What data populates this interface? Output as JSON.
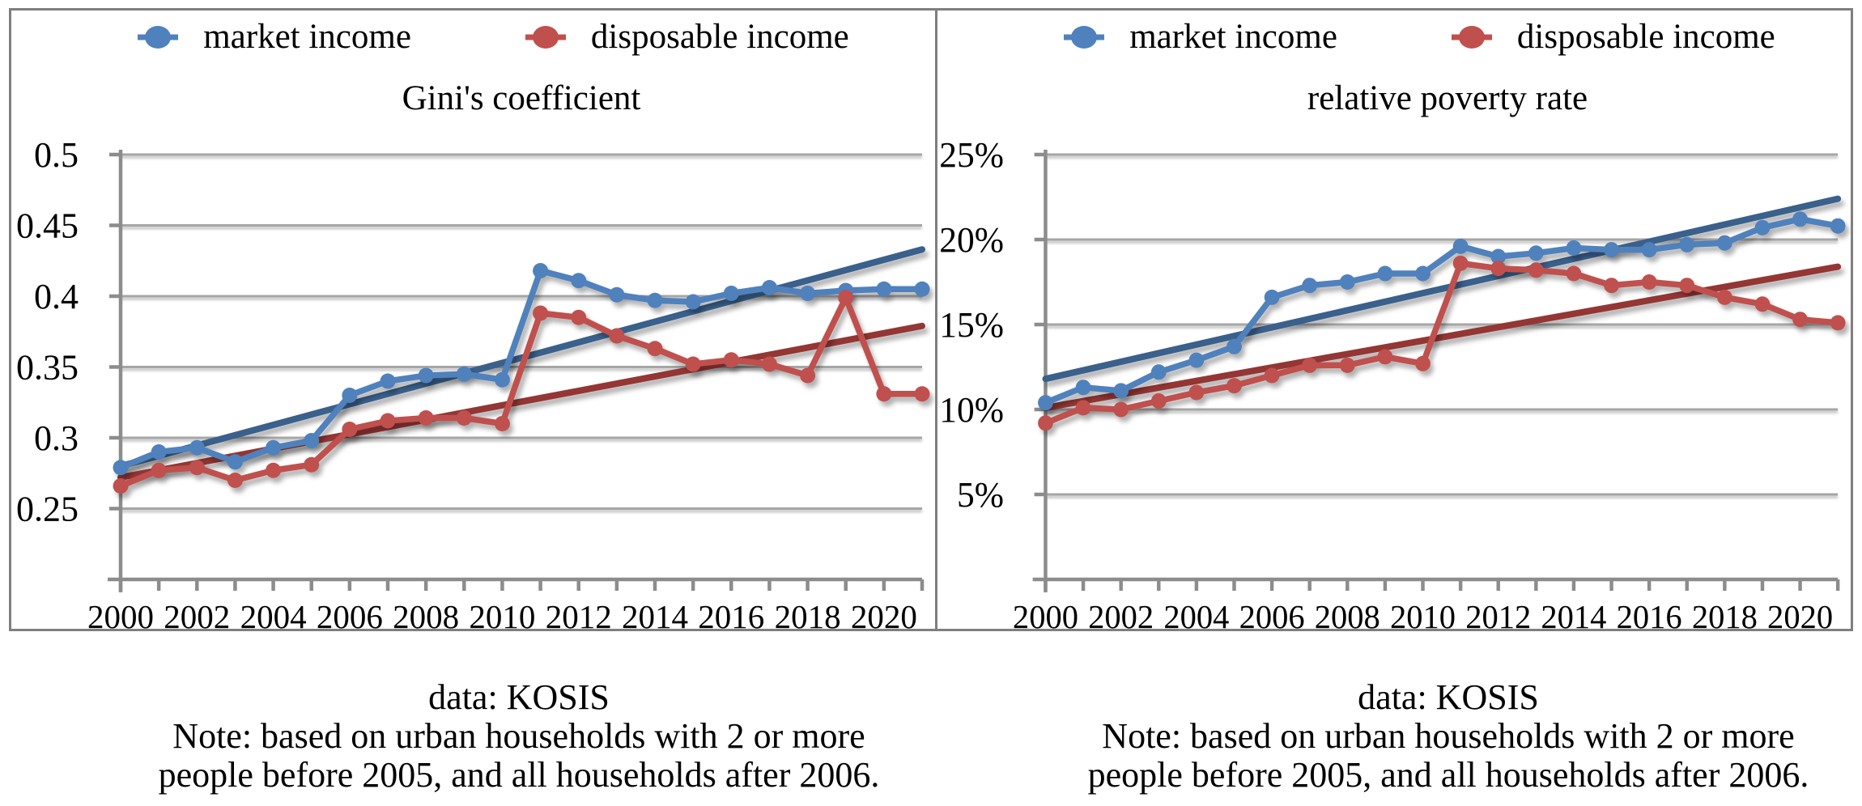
{
  "colors": {
    "market": "#4F81BD",
    "disposable": "#C0504D",
    "market_trend": "#3A608C",
    "disposable_trend": "#943634",
    "gridline": "#A6A6A6",
    "axis": "#8C8C8C",
    "panel_border": "#7F7F7F",
    "text": "#000000",
    "background": "#FFFFFF"
  },
  "panels": [
    {
      "caption": {
        "source": "data: KOSIS",
        "note1": "Note: based on urban households with 2 or more",
        "note2": "people before 2005, and all households after 2006."
      }
    },
    {
      "caption": {
        "source": "data: KOSIS",
        "note1": "Note: based on urban households with 2 or more",
        "note2": "people before 2005, and all households after 2006."
      }
    }
  ],
  "chart_data": [
    {
      "type": "line",
      "title": "Gini's coefficient",
      "legend_position": "top",
      "grid": true,
      "x": [
        2000,
        2001,
        2002,
        2003,
        2004,
        2005,
        2006,
        2007,
        2008,
        2009,
        2010,
        2011,
        2012,
        2013,
        2014,
        2015,
        2016,
        2017,
        2018,
        2019,
        2020,
        2021
      ],
      "x_tick_years": [
        2000,
        2002,
        2004,
        2006,
        2008,
        2010,
        2012,
        2014,
        2016,
        2018,
        2020
      ],
      "x_tick_labels": [
        "2000",
        "2002",
        "2004",
        "2006",
        "2008",
        "2010",
        "2012",
        "2014",
        "2016",
        "2018",
        "2020"
      ],
      "ylim": [
        0.2,
        0.5
      ],
      "y_ticks": [
        {
          "v": 0.5,
          "label": "0.5"
        },
        {
          "v": 0.45,
          "label": "0.45"
        },
        {
          "v": 0.4,
          "label": "0.4"
        },
        {
          "v": 0.35,
          "label": "0.35"
        },
        {
          "v": 0.3,
          "label": "0.3"
        },
        {
          "v": 0.25,
          "label": "0.25"
        }
      ],
      "series": [
        {
          "name": "market income",
          "color_key": "market",
          "marker": "circle",
          "values": [
            0.279,
            0.29,
            0.293,
            0.283,
            0.293,
            0.298,
            0.33,
            0.34,
            0.344,
            0.345,
            0.341,
            0.418,
            0.411,
            0.401,
            0.397,
            0.396,
            0.402,
            0.406,
            0.402,
            0.404,
            0.405,
            0.405
          ]
        },
        {
          "name": "disposable income",
          "color_key": "disposable",
          "marker": "circle",
          "values": [
            0.266,
            0.277,
            0.279,
            0.27,
            0.277,
            0.281,
            0.306,
            0.312,
            0.314,
            0.314,
            0.31,
            0.388,
            0.385,
            0.372,
            0.363,
            0.352,
            0.355,
            0.352,
            0.344,
            0.399,
            0.331,
            0.331
          ]
        },
        {
          "name": "market income linear trend",
          "color_key": "market_trend",
          "trend": true,
          "endpoints": [
            0.28,
            0.433
          ]
        },
        {
          "name": "disposable income linear trend",
          "color_key": "disposable_trend",
          "trend": true,
          "endpoints": [
            0.272,
            0.379
          ]
        }
      ]
    },
    {
      "type": "line",
      "title": "relative poverty rate",
      "legend_position": "top",
      "grid": true,
      "x": [
        2000,
        2001,
        2002,
        2003,
        2004,
        2005,
        2006,
        2007,
        2008,
        2009,
        2010,
        2011,
        2012,
        2013,
        2014,
        2015,
        2016,
        2017,
        2018,
        2019,
        2020,
        2021
      ],
      "x_tick_years": [
        2000,
        2002,
        2004,
        2006,
        2008,
        2010,
        2012,
        2014,
        2016,
        2018,
        2020
      ],
      "x_tick_labels": [
        "2000",
        "2002",
        "2004",
        "2006",
        "2008",
        "2010",
        "2012",
        "2014",
        "2016",
        "2018",
        "2020"
      ],
      "ylim": [
        0,
        25
      ],
      "y_ticks": [
        {
          "v": 25,
          "label": "25%"
        },
        {
          "v": 20,
          "label": "20%"
        },
        {
          "v": 15,
          "label": "15%"
        },
        {
          "v": 10,
          "label": "10%"
        },
        {
          "v": 5,
          "label": "5%"
        }
      ],
      "series": [
        {
          "name": "market income",
          "color_key": "market",
          "marker": "circle",
          "values": [
            10.4,
            11.3,
            11.1,
            12.2,
            12.9,
            13.7,
            16.6,
            17.3,
            17.5,
            18.0,
            18.0,
            19.6,
            19.0,
            19.2,
            19.5,
            19.4,
            19.4,
            19.7,
            19.8,
            20.7,
            21.2,
            20.8
          ]
        },
        {
          "name": "disposable income",
          "color_key": "disposable",
          "marker": "circle",
          "values": [
            9.2,
            10.1,
            10.0,
            10.5,
            11.0,
            11.4,
            12.0,
            12.6,
            12.6,
            13.1,
            12.7,
            18.6,
            18.3,
            18.2,
            18.0,
            17.3,
            17.5,
            17.3,
            16.6,
            16.2,
            15.3,
            15.1
          ]
        },
        {
          "name": "market income linear trend",
          "color_key": "market_trend",
          "trend": true,
          "endpoints": [
            11.8,
            22.4
          ]
        },
        {
          "name": "disposable income linear trend",
          "color_key": "disposable_trend",
          "trend": true,
          "endpoints": [
            10.1,
            18.4
          ]
        }
      ]
    }
  ]
}
